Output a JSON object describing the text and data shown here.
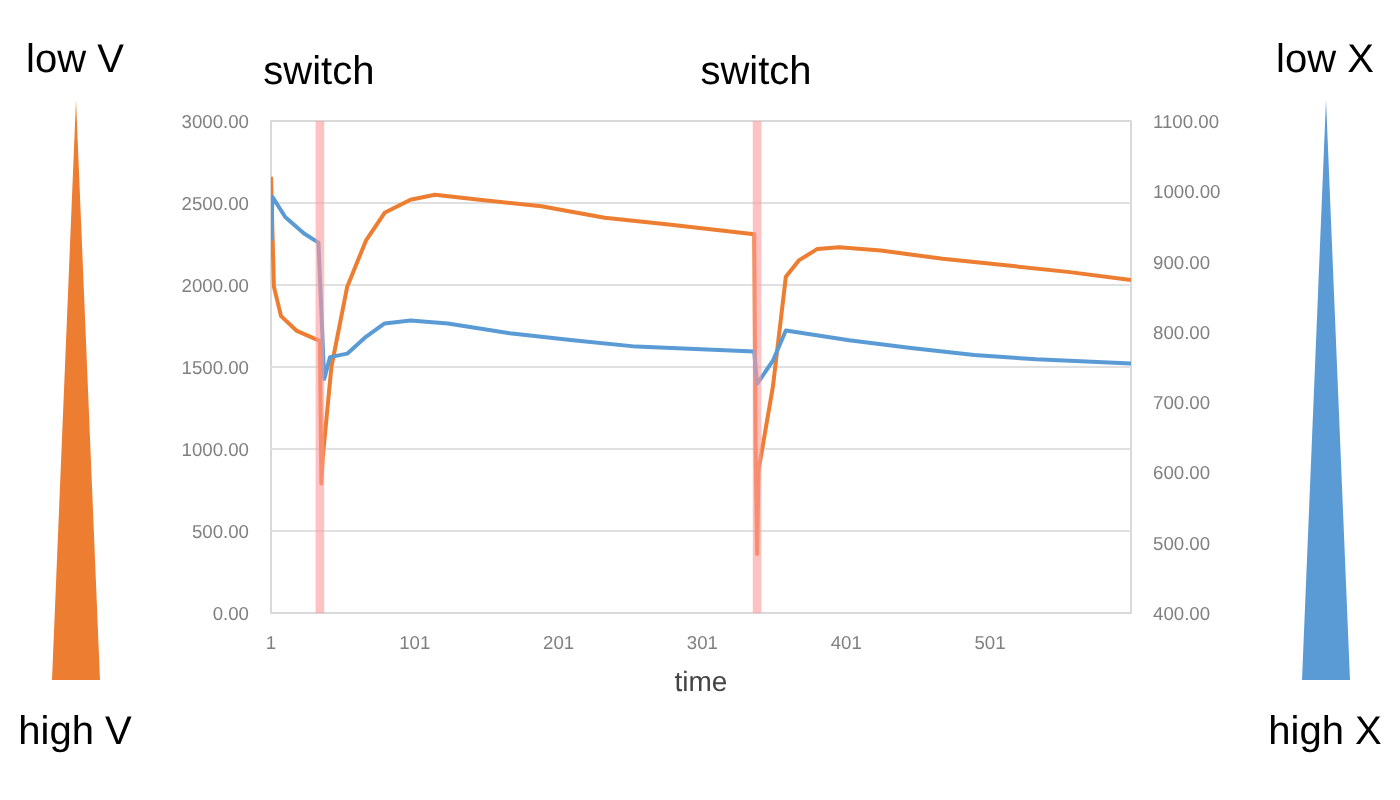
{
  "chart_data": {
    "type": "line",
    "xlabel": "time",
    "annotations": [
      "low V",
      "high V",
      "low X",
      "high X"
    ],
    "xlim": [
      1,
      599
    ],
    "xticks": [
      1,
      101,
      201,
      301,
      401,
      501
    ],
    "ylim": [
      0,
      3000
    ],
    "yticks": [
      {
        "value": 0,
        "label": "0.00"
      },
      {
        "value": 500,
        "label": "500.00"
      },
      {
        "value": 1000,
        "label": "1000.00"
      },
      {
        "value": 1500,
        "label": "1500.00"
      },
      {
        "value": 2000,
        "label": "2000.00"
      },
      {
        "value": 2500,
        "label": "2500.00"
      },
      {
        "value": 3000,
        "label": "3000.00"
      }
    ],
    "y2lim": [
      400,
      1100
    ],
    "y2ticks": [
      {
        "value": 400,
        "label": "400.00"
      },
      {
        "value": 500,
        "label": "500.00"
      },
      {
        "value": 600,
        "label": "600.00"
      },
      {
        "value": 700,
        "label": "700.00"
      },
      {
        "value": 800,
        "label": "800.00"
      },
      {
        "value": 900,
        "label": "900.00"
      },
      {
        "value": 1000,
        "label": "1000.00"
      },
      {
        "value": 1100,
        "label": "1100.00"
      }
    ],
    "grid": "y",
    "marker": "none",
    "line_style": "solid",
    "bands": [
      {
        "axis": "x",
        "from": 32,
        "to": 38,
        "label": "switch",
        "color": "#ff9999"
      },
      {
        "axis": "x",
        "from": 336,
        "to": 342,
        "label": "switch",
        "color": "#ff9999"
      }
    ],
    "series": [
      {
        "color": "#ed7d31",
        "x": [
          1,
          3,
          8,
          19,
          32,
          35,
          36,
          37,
          43,
          54,
          67,
          80,
          98,
          115,
          146,
          189,
          233,
          276,
          337,
          338,
          339,
          340,
          350,
          359,
          368,
          381,
          396,
          425,
          468,
          512,
          555,
          599
        ],
        "values": [
          2660,
          1990,
          1810,
          1720,
          1670,
          1660,
          790,
          950,
          1500,
          1990,
          2270,
          2440,
          2520,
          2550,
          2520,
          2480,
          2410,
          2370,
          2310,
          1000,
          360,
          870,
          1380,
          2050,
          2150,
          2220,
          2230,
          2210,
          2160,
          2120,
          2080,
          2030
        ]
      },
      {
        "color": "#5b9bd5",
        "axis": "y2",
        "x": [
          1,
          2,
          11,
          24,
          34,
          38,
          42,
          54,
          67,
          80,
          98,
          124,
          167,
          211,
          255,
          337,
          339,
          350,
          359,
          403,
          446,
          490,
          533,
          599
        ],
        "values": [
          930,
          992,
          963,
          940,
          927,
          733,
          764,
          769,
          793,
          812,
          816,
          812,
          798,
          788,
          779,
          772,
          726,
          759,
          802,
          788,
          777,
          767,
          761,
          755
        ]
      }
    ]
  }
}
